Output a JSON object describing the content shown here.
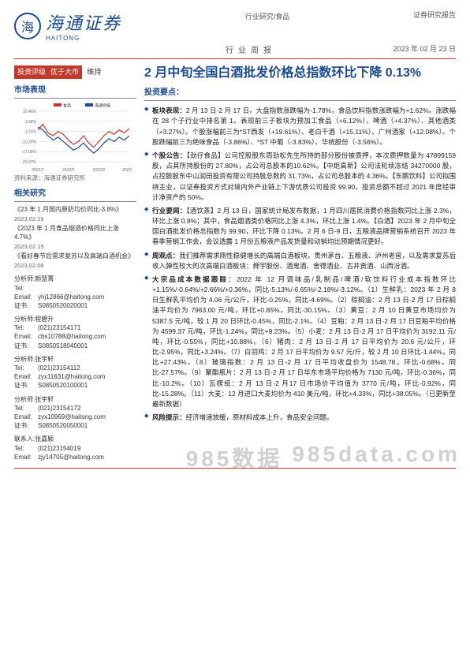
{
  "header": {
    "brand_cn": "海通证券",
    "brand_en": "HAITONG",
    "category_line": "行业研究/食品",
    "report_type": "证券研究报告",
    "sub_center": "行业周报",
    "date": "2023 年 02 月 23 日"
  },
  "rating": {
    "label": "投资评级",
    "value": "优于大市",
    "maintain": "维持"
  },
  "sidebar": {
    "market_title": "市场表现",
    "chart": {
      "type": "line",
      "width": 150,
      "height": 90,
      "series": [
        {
          "name": "食品",
          "color": "#c0392b",
          "points": [
            [
              0,
              -2
            ],
            [
              8,
              2
            ],
            [
              16,
              -4
            ],
            [
              24,
              -6
            ],
            [
              32,
              -3
            ],
            [
              40,
              -5
            ],
            [
              48,
              -9
            ],
            [
              56,
              -12
            ],
            [
              64,
              -10
            ],
            [
              72,
              -6
            ],
            [
              80,
              -11
            ],
            [
              88,
              -14
            ],
            [
              96,
              -10
            ],
            [
              104,
              -6
            ],
            [
              112,
              -3
            ],
            [
              120,
              -5
            ],
            [
              128,
              -2
            ],
            [
              136,
              -4
            ],
            [
              144,
              -1
            ]
          ]
        },
        {
          "name": "海通综指",
          "color": "#1a4b8c",
          "points": [
            [
              0,
              0
            ],
            [
              8,
              -2
            ],
            [
              16,
              -6
            ],
            [
              24,
              -9
            ],
            [
              32,
              -7
            ],
            [
              40,
              -10
            ],
            [
              48,
              -13
            ],
            [
              56,
              -16
            ],
            [
              64,
              -14
            ],
            [
              72,
              -11
            ],
            [
              80,
              -15
            ],
            [
              88,
              -18
            ],
            [
              96,
              -15
            ],
            [
              104,
              -11
            ],
            [
              112,
              -8
            ],
            [
              120,
              -10
            ],
            [
              128,
              -7
            ],
            [
              136,
              -9
            ],
            [
              144,
              -6
            ]
          ]
        }
      ],
      "y_ticks": [
        "10.46%",
        "3.58%",
        "-3.31%",
        "-10.20%",
        "-17.09%",
        "-23.97%"
      ],
      "x_ticks": [
        "2022/2",
        "2022/5",
        "2022/8",
        "2022/11"
      ],
      "ylim": [
        -24,
        11
      ],
      "grid_color": "#d0d0d0",
      "background": "#ffffff",
      "line_width": 1.2
    },
    "chart_caption": "资料来源：海通证券研究所",
    "related_title": "相关研究",
    "related": [
      {
        "text": "《23 年 1 月国内原奶均价同比-3.8%》",
        "date": "2023.02.19"
      },
      {
        "text": "《2023 年 1 月食品烟酒价格同比上涨4.7%》",
        "date": "2023.02.15"
      },
      {
        "text": "《看好春节后需求复苏以及高端白酒机会》",
        "date": "2023.02.08"
      }
    ],
    "analysts": [
      {
        "role": "分析师:颜慧菁",
        "lines": [
          [
            "Tel:",
            ""
          ],
          [
            "Email:",
            "yhj12866@haitong.com"
          ],
          [
            "证书:",
            "S0850520020001"
          ]
        ]
      },
      {
        "role": "分析师:程碧升",
        "lines": [
          [
            "Tel:",
            "(021)23154171"
          ],
          [
            "Email:",
            "cbs10788@haitong.com"
          ],
          [
            "证书:",
            "S0850518040001"
          ]
        ]
      },
      {
        "role": "分析师:张宇轩",
        "lines": [
          [
            "Tel:",
            "(021)23154112"
          ],
          [
            "Email:",
            "zyx11631@haitong.com"
          ],
          [
            "证书:",
            "S0850520100001"
          ]
        ]
      },
      {
        "role": "分析师:张宇轩",
        "lines": [
          [
            "Tel:",
            "(021)23154172"
          ],
          [
            "Email:",
            "zyx10969@haitong.com"
          ],
          [
            "证书:",
            "S0850520050001"
          ]
        ]
      },
      {
        "role": "联系人:张嘉颖",
        "lines": [
          [
            "Tel:",
            "(021)23154019"
          ],
          [
            "Email:",
            "zjy14705@haitong.com"
          ]
        ]
      }
    ]
  },
  "main": {
    "title": "2 月中旬全国白酒批发价格总指数环比下降 0.13%",
    "invest_key": "投资要点：",
    "points": [
      {
        "lead": "板块表现：",
        "text": "2 月 13 日-2 月 17 日，大盘指数涨跌幅为-1.78%，食品饮料指数涨跌幅为+1.62%。涨跌幅在 28 个子行业中排名第 1。表现前三子板块为预加工食品（+6.12%）、啤酒（+4.37%）、其他酒类（+3.27%）。个股涨幅前三为*ST西发（+19.61%）、老白干酒（+15.11%）、广州酒家（+12.08%）。个股跌幅前三为绝味食品（-3.86%）、*ST 中葡（-3.83%）、华统股份（-3.56%）。"
      },
      {
        "lead": "个股公告：",
        "text": "【劲仔食品】公司控股股东周劲松先生所持的部分股份被质押，本次质押数量为 47899159 股，占其所持股份的 27.80%，占公司总股本的10.62%。【中炬高新】公司法轮续冻结 34270000 股，占控股股东中山润田投资有限公司持股总数的 31.73%，占公司总股本的 4.36%。【东鹏饮料】公司拟围绕主业，以证券投资方式对境内外产业链上下游优质公司投资 99.90，投资总额不超过 2021 年度经审计净资产的 50%。"
      },
      {
        "lead": "行业要闻：",
        "text": "【酒饮茶】2 月 13 日，国家统计局发布数据，1 月四川居民消费价格指数同比上涨 2.3%，环比上涨 0.8%；其中，食品烟酒类价格同比上涨 4.3%，环比上涨 1.4%。【白酒】2023 年 2 月中旬全国白酒批发价格总指数为 99.90，环比下降 0.13%。2 月 6 日-9 日，五粮液品牌营销系统召开 2023 年春季营销工作会，会议透露 1 月份五粮液产品发货量和动销均比预期情况更好。"
      },
      {
        "lead": "周观点：",
        "text": "我们推荐需求刚性稳健增长的高端白酒板块，贵州茅台、五粮液、泸州老窖，以及需求复苏后收入弹性较大的次高端白酒板块：舜宇股份、酒鬼酒、舍得酒业、古井贡酒、山西汾酒。"
      },
      {
        "lead": "大宗品成本数据跟踪：",
        "text": "2022 年 12 月调味品/乳制品/啤酒/软饮料行业成本指数环比+1.15%/-0.64%/+2.66%/+0.36%，同比-5.13%/-6.65%/-2.18%/-3.12%。（1）生鲜乳：2023 年 2 月 8 日生鲜乳平均价为 4.06 元/公斤，环比-0.25%，同比-4.69%。（2）棕榈油：2 月 13 日-2 月 17 日棕榈油平均价为 7963.00 元/吨，环比+0.85%，同比-30.15%。（3）黄豆：2 月 10 日黄豆市场均价为 5387.5 元/吨，较 1 月 20 日环比-0.45%，同比-2.1%。（4）豆粕：2 月 13 日-2 月 17 日豆粕平均价格为 4599.37 元/吨，环比-1.24%，同比+9.23%。（5）小麦：2 月 13 日-2 月 17 日平均价为 3192.11 元/吨，环比-0.55%，同比+10.88%。（6）猪肉：2 月 13 日-2 月 17 日平均价为 20.6 元/公斤，环比-2.95%，同比+3.24%。（7）白羽鸡：2 月 17 日平均价为 9.57 元/斤，较 2 月 10 日环比-1.44%，同比+27.43%。（8）玻璃指数：2 月 13 日-2 月 17 日平均收盘价为 1548.78，环比-0.68%，同比-27.57%。（9）聚酯瓶片：2 月 13 日-2 月 17 日华东市场平均价格为 7130 元/吨，环比-0.36%，同比-10.2%。（10）瓦楞纸：2 月 13 日-2 月17 日市场价平均值为 3770 元/吨，环比-0.92%，同比-15.28%。（11）大麦：12 月进口大麦均价为 410 美元/吨，环比+4.33%，同比+38.05%。（已更新至最新数据）"
      },
      {
        "lead": "风险提示：",
        "text": "经济增速放缓，原材料成本上升，食品安全问题。"
      }
    ]
  },
  "watermark": {
    "a": "985数据",
    "b": "985data.com"
  },
  "colors": {
    "accent_red": "#c0392b",
    "brand_blue": "#1a4b8c",
    "text": "#222222"
  }
}
